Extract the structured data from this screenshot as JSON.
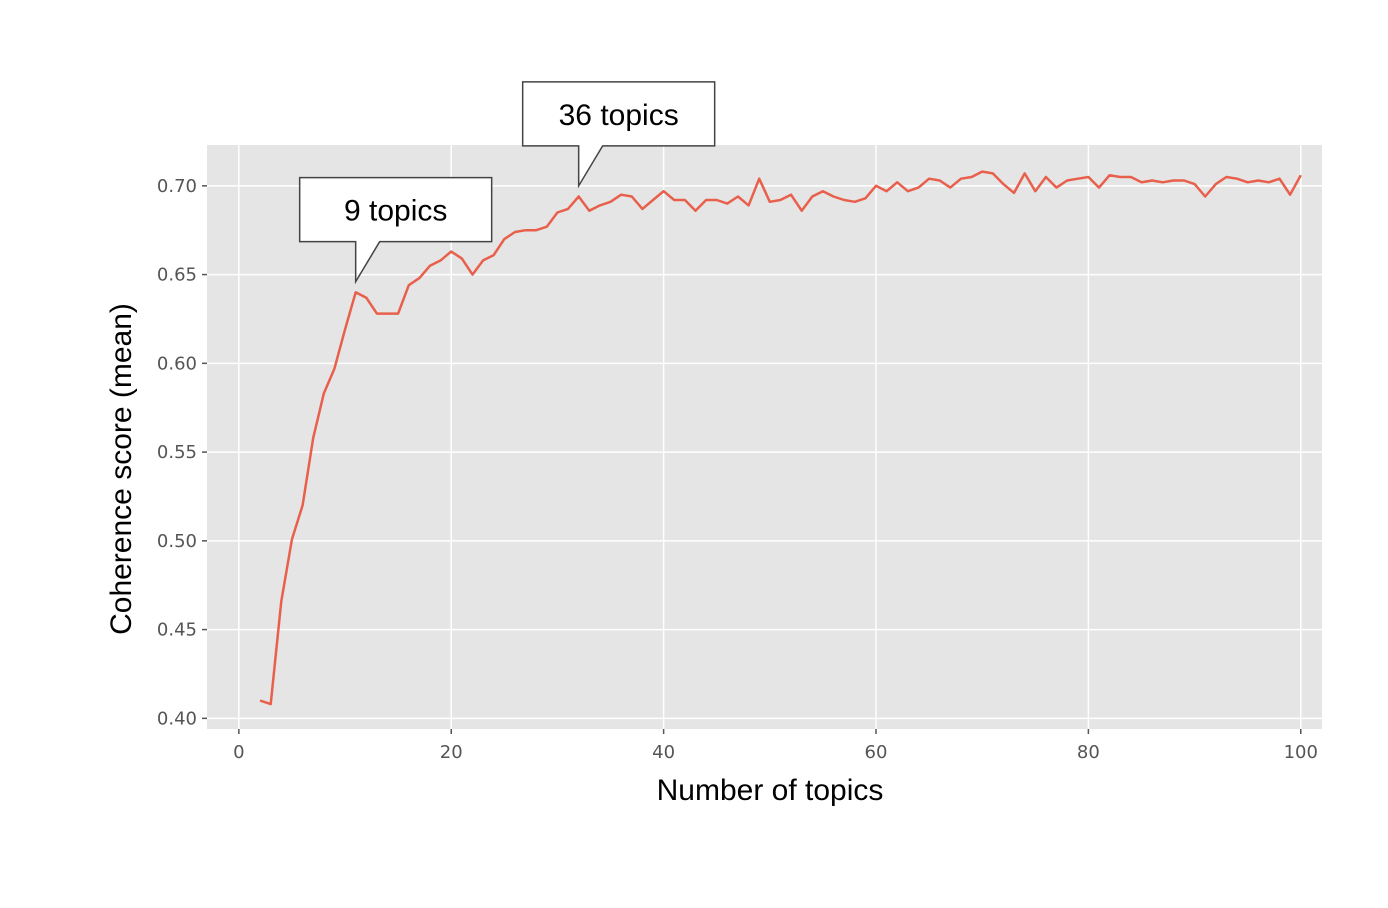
{
  "chart_data": {
    "type": "line",
    "title": "",
    "xlabel": "Number of topics",
    "ylabel": "Coherence score (mean)",
    "xlim": [
      -3,
      102
    ],
    "ylim": [
      0.394,
      0.723
    ],
    "xticks": [
      0,
      20,
      40,
      60,
      80,
      100
    ],
    "xtick_labels": [
      "0",
      "20",
      "40",
      "60",
      "80",
      "100"
    ],
    "yticks": [
      0.4,
      0.45,
      0.5,
      0.55,
      0.6,
      0.65,
      0.7
    ],
    "ytick_labels": [
      "0.40",
      "0.45",
      "0.50",
      "0.55",
      "0.60",
      "0.65",
      "0.70"
    ],
    "grid": true,
    "style": "ggplot",
    "colors": {
      "line": "#e8604c",
      "plot_background": "#e5e5e5",
      "grid": "#ffffff"
    },
    "series": [
      {
        "x": [
          2,
          3,
          4,
          5,
          6,
          7,
          8,
          9,
          10,
          11,
          12,
          13,
          14,
          15,
          16,
          17,
          18,
          19,
          20,
          21,
          22,
          23,
          24,
          25,
          26,
          27,
          28,
          29,
          30,
          31,
          32,
          33,
          34,
          35,
          36,
          37,
          38,
          39,
          40,
          41,
          42,
          43,
          44,
          45,
          46,
          47,
          48,
          49,
          50,
          51,
          52,
          53,
          54,
          55,
          56,
          57,
          58,
          59,
          60,
          61,
          62,
          63,
          64,
          65,
          66,
          67,
          68,
          69,
          70,
          71,
          72,
          73,
          74,
          75,
          76,
          77,
          78,
          79,
          80,
          81,
          82,
          83,
          84,
          85,
          86,
          87,
          88,
          89,
          90,
          91,
          92,
          93,
          94,
          95,
          96,
          97,
          98,
          99,
          100
        ],
        "y": [
          0.41,
          0.408,
          0.466,
          0.501,
          0.52,
          0.558,
          0.583,
          0.597,
          0.619,
          0.64,
          0.637,
          0.628,
          0.628,
          0.628,
          0.644,
          0.648,
          0.655,
          0.658,
          0.663,
          0.659,
          0.65,
          0.658,
          0.661,
          0.67,
          0.674,
          0.675,
          0.675,
          0.677,
          0.685,
          0.687,
          0.694,
          0.686,
          0.689,
          0.691,
          0.695,
          0.694,
          0.687,
          0.692,
          0.697,
          0.692,
          0.692,
          0.686,
          0.692,
          0.692,
          0.69,
          0.694,
          0.689,
          0.704,
          0.691,
          0.692,
          0.695,
          0.686,
          0.694,
          0.697,
          0.694,
          0.692,
          0.691,
          0.693,
          0.7,
          0.697,
          0.702,
          0.697,
          0.699,
          0.704,
          0.703,
          0.699,
          0.704,
          0.705,
          0.708,
          0.707,
          0.701,
          0.696,
          0.707,
          0.697,
          0.705,
          0.699,
          0.703,
          0.704,
          0.705,
          0.699,
          0.706,
          0.705,
          0.705,
          0.702,
          0.703,
          0.702,
          0.703,
          0.703,
          0.701,
          0.694,
          0.701,
          0.705,
          0.704,
          0.702,
          0.703,
          0.702,
          0.704,
          0.695,
          0.706
        ]
      }
    ],
    "annotations": [
      {
        "text": "9 topics",
        "x": 11,
        "y": 0.646
      },
      {
        "text": "36 topics",
        "x": 32,
        "y": 0.7
      }
    ]
  }
}
